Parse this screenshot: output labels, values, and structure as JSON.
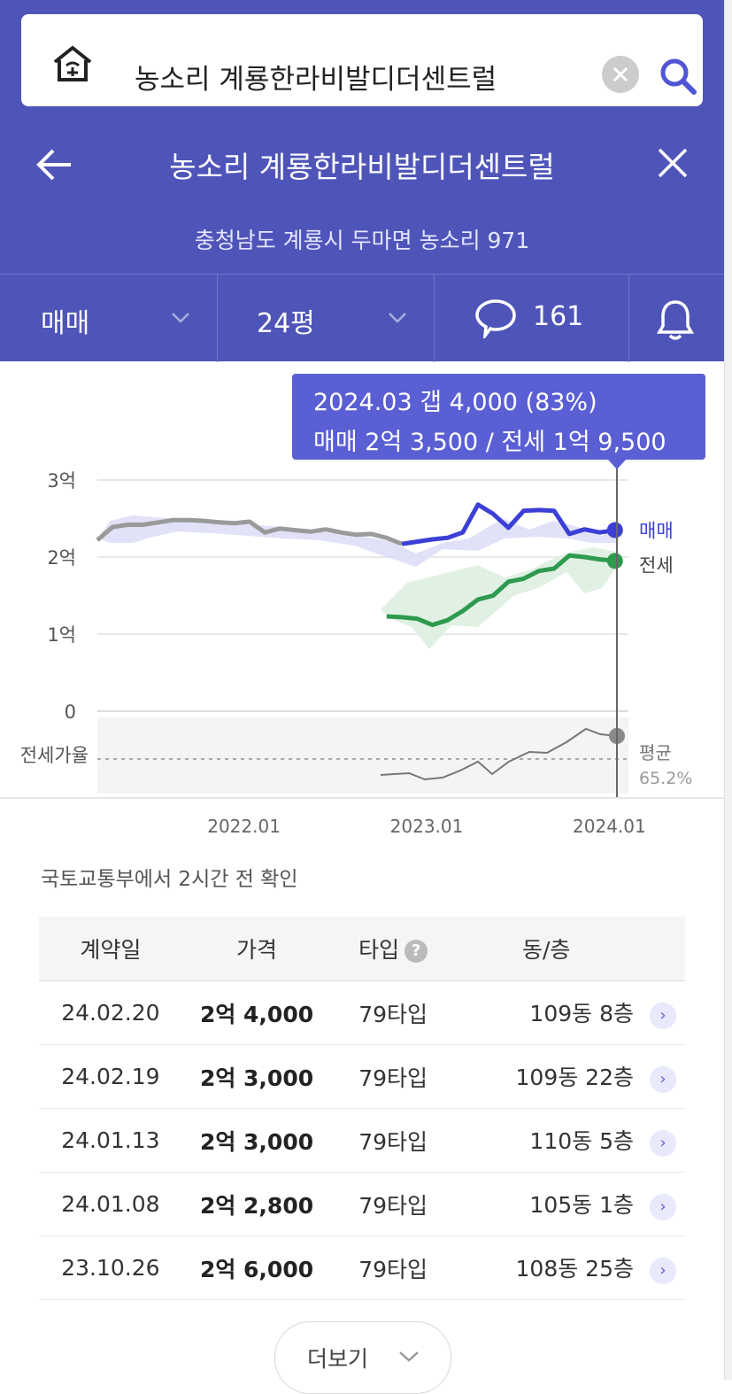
{
  "search": {
    "query": "농소리 계룡한라비발디더센트럴"
  },
  "titlebar": {
    "title": "농소리 계룡한라비발디더센트럴"
  },
  "address": "충청남도 계룡시 두마면 농소리 971",
  "tabs": {
    "deal_type": "매매",
    "size": "24평",
    "comments": "161"
  },
  "tooltip": {
    "line1": "2024.03  갭 4,000 (83%)",
    "line2": "매매 2억 3,500 / 전세 1억 9,500"
  },
  "chart_data": {
    "type": "line",
    "y_ticks": [
      "3억",
      "2억",
      "1억",
      "0"
    ],
    "ylim": [
      0,
      3
    ],
    "y_unit": "억",
    "x_ticks": [
      "2022.01",
      "2023.01",
      "2024.01"
    ],
    "series": [
      {
        "name": "매매",
        "color": "#3c3fd6",
        "x": [
          "2021.05",
          "2021.06",
          "2021.07",
          "2021.08",
          "2021.09",
          "2021.10",
          "2021.11",
          "2021.12",
          "2022.01",
          "2022.02",
          "2022.03",
          "2022.04",
          "2022.05",
          "2022.06",
          "2022.07",
          "2022.08",
          "2022.09",
          "2022.10",
          "2022.11",
          "2022.12",
          "2023.01",
          "2023.02",
          "2023.03",
          "2023.04",
          "2023.05",
          "2023.06",
          "2023.07",
          "2023.08",
          "2023.09",
          "2023.10",
          "2023.11",
          "2023.12",
          "2024.01",
          "2024.02",
          "2024.03"
        ],
        "values": [
          2.22,
          2.39,
          2.42,
          2.42,
          2.45,
          2.48,
          2.48,
          2.47,
          2.45,
          2.44,
          2.46,
          2.32,
          2.37,
          2.35,
          2.33,
          2.36,
          2.32,
          2.29,
          2.3,
          2.25,
          2.17,
          2.2,
          2.23,
          2.25,
          2.32,
          2.68,
          2.56,
          2.38,
          2.6,
          2.61,
          2.6,
          2.3,
          2.36,
          2.32,
          2.35
        ]
      },
      {
        "name": "전세",
        "color": "#2e9a4e",
        "x": [
          "2022.12",
          "2023.01",
          "2023.02",
          "2023.03",
          "2023.04",
          "2023.05",
          "2023.06",
          "2023.07",
          "2023.08",
          "2023.09",
          "2023.10",
          "2023.11",
          "2023.12",
          "2024.01",
          "2024.02",
          "2024.03"
        ],
        "values": [
          1.23,
          1.22,
          1.2,
          1.12,
          1.18,
          1.3,
          1.45,
          1.5,
          1.68,
          1.72,
          1.82,
          1.85,
          2.02,
          2.0,
          1.97,
          1.95
        ]
      }
    ],
    "ratio_panel": {
      "label": "전세가율",
      "avg_label": "평균",
      "avg_value": "65.2%"
    }
  },
  "source_note": "국토교통부에서 2시간 전 확인",
  "table": {
    "headers": [
      "계약일",
      "가격",
      "타입",
      "동/층"
    ],
    "rows": [
      {
        "date": "24.02.20",
        "price": "2억 4,000",
        "type": "79타입",
        "unit": "109동 8층"
      },
      {
        "date": "24.02.19",
        "price": "2억 3,000",
        "type": "79타입",
        "unit": "109동 22층"
      },
      {
        "date": "24.01.13",
        "price": "2억 3,000",
        "type": "79타입",
        "unit": "110동 5층"
      },
      {
        "date": "24.01.08",
        "price": "2억 2,800",
        "type": "79타입",
        "unit": "105동 1층"
      },
      {
        "date": "23.10.26",
        "price": "2억 6,000",
        "type": "79타입",
        "unit": "108동 25층"
      }
    ]
  },
  "more_label": "더보기"
}
